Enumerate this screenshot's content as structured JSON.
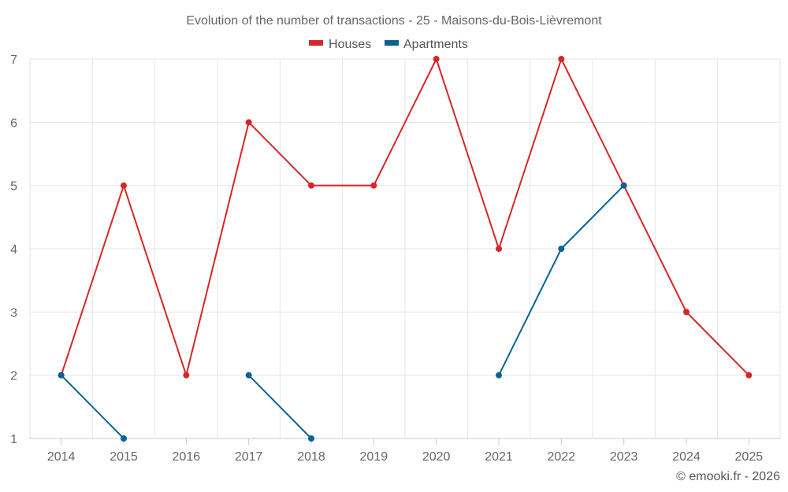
{
  "chart_data": {
    "type": "line",
    "title": "Evolution of the number of transactions - 25 - Maisons-du-Bois-Lièvremont",
    "categories": [
      "2014",
      "2015",
      "2016",
      "2017",
      "2018",
      "2019",
      "2020",
      "2021",
      "2022",
      "2023",
      "2024",
      "2025"
    ],
    "yticks": [
      "1",
      "2",
      "3",
      "4",
      "5",
      "6",
      "7"
    ],
    "ylim": [
      1,
      7
    ],
    "grid": true,
    "legend_position": "top-center",
    "series": [
      {
        "name": "Houses",
        "color": "#d62728",
        "values": [
          2,
          5,
          2,
          6,
          5,
          5,
          7,
          4,
          7,
          5,
          3,
          2
        ]
      },
      {
        "name": "Apartments",
        "color": "#0b6394",
        "values": [
          2,
          1,
          null,
          2,
          1,
          null,
          null,
          2,
          4,
          5,
          null,
          null
        ]
      }
    ]
  },
  "credit": "© emooki.fr - 2026"
}
